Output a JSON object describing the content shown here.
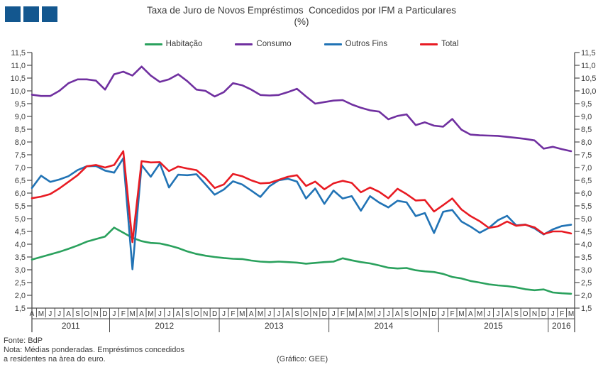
{
  "header": {
    "title": "Taxa de Juro de Novos Empréstimos  Concedidos por IFM a Particulares",
    "subtitle": "(%)"
  },
  "footer": {
    "source": "Fonte: BdP",
    "note_line1": "Nota: Médias ponderadas. Empréstimos concedidos",
    "note_line2": "a residentes na àrea do euro.",
    "credit": "(Gráfico: GEE)"
  },
  "chart_data": {
    "type": "line",
    "title": "Taxa de Juro de Novos Empréstimos Concedidos por IFM a Particulares (%)",
    "ylim": [
      1.5,
      11.5
    ],
    "ytick_step": 0.5,
    "ytick_labels": [
      "11,5",
      "11,0",
      "10,5",
      "10,0",
      "9,5",
      "9,0",
      "8,5",
      "8,0",
      "7,5",
      "7,0",
      "6,5",
      "6,0",
      "5,5",
      "5,0",
      "4,5",
      "4,0",
      "3,5",
      "3,0",
      "2,5",
      "2,0",
      "1,5"
    ],
    "grid": false,
    "legend_position": "top",
    "x_months": [
      "A",
      "M",
      "J",
      "J",
      "A",
      "S",
      "O",
      "N",
      "D",
      "J",
      "F",
      "M",
      "A",
      "M",
      "J",
      "J",
      "A",
      "S",
      "O",
      "N",
      "D",
      "J",
      "F",
      "M",
      "A",
      "M",
      "J",
      "J",
      "A",
      "S",
      "O",
      "N",
      "D",
      "J",
      "F",
      "M",
      "A",
      "M",
      "J",
      "J",
      "A",
      "S",
      "O",
      "N",
      "D",
      "J",
      "F",
      "M",
      "A",
      "M",
      "J",
      "J",
      "A",
      "S",
      "O",
      "N",
      "D",
      "J",
      "F",
      "M"
    ],
    "year_groups": [
      {
        "label": "2011",
        "start": 0,
        "count": 9
      },
      {
        "label": "2012",
        "start": 9,
        "count": 12
      },
      {
        "label": "2013",
        "start": 21,
        "count": 12
      },
      {
        "label": "2014",
        "start": 33,
        "count": 12
      },
      {
        "label": "2015",
        "start": 45,
        "count": 12
      },
      {
        "label": "2016",
        "start": 57,
        "count": 3
      }
    ],
    "series": [
      {
        "name": "Habitação",
        "color": "#2aa15d",
        "values": [
          3.4,
          3.5,
          3.6,
          3.7,
          3.82,
          3.95,
          4.1,
          4.2,
          4.3,
          4.65,
          4.45,
          4.25,
          4.12,
          4.05,
          4.03,
          3.95,
          3.85,
          3.72,
          3.62,
          3.55,
          3.5,
          3.46,
          3.43,
          3.42,
          3.36,
          3.32,
          3.3,
          3.32,
          3.3,
          3.28,
          3.24,
          3.27,
          3.3,
          3.32,
          3.45,
          3.37,
          3.3,
          3.25,
          3.17,
          3.08,
          3.05,
          3.07,
          2.98,
          2.94,
          2.91,
          2.84,
          2.72,
          2.66,
          2.56,
          2.5,
          2.43,
          2.39,
          2.36,
          2.31,
          2.24,
          2.2,
          2.23,
          2.11,
          2.08,
          2.06
        ]
      },
      {
        "name": "Consumo",
        "color": "#7030a0",
        "values": [
          9.85,
          9.8,
          9.8,
          10.0,
          10.3,
          10.45,
          10.45,
          10.4,
          10.05,
          10.65,
          10.75,
          10.6,
          10.95,
          10.6,
          10.35,
          10.45,
          10.65,
          10.38,
          10.05,
          10.0,
          9.78,
          9.95,
          10.3,
          10.22,
          10.05,
          9.84,
          9.82,
          9.84,
          9.95,
          10.08,
          9.78,
          9.5,
          9.56,
          9.62,
          9.64,
          9.47,
          9.34,
          9.24,
          9.19,
          8.89,
          9.02,
          9.08,
          8.66,
          8.77,
          8.64,
          8.6,
          8.9,
          8.48,
          8.29,
          8.26,
          8.25,
          8.24,
          8.2,
          8.16,
          8.12,
          8.06,
          7.74,
          7.81,
          7.72,
          7.64
        ]
      },
      {
        "name": "Outros Fins",
        "color": "#2173b5",
        "values": [
          6.2,
          6.68,
          6.44,
          6.53,
          6.66,
          6.9,
          7.05,
          7.06,
          6.88,
          6.8,
          7.36,
          3.02,
          7.1,
          6.64,
          7.16,
          6.22,
          6.72,
          6.7,
          6.74,
          6.34,
          5.94,
          6.14,
          6.46,
          6.34,
          6.1,
          5.85,
          6.27,
          6.5,
          6.56,
          6.45,
          5.79,
          6.18,
          5.58,
          6.1,
          5.79,
          5.88,
          5.31,
          5.88,
          5.63,
          5.44,
          5.7,
          5.64,
          5.1,
          5.22,
          4.44,
          5.27,
          5.34,
          4.89,
          4.69,
          4.45,
          4.64,
          4.94,
          5.11,
          4.74,
          4.77,
          4.62,
          4.38,
          4.58,
          4.71,
          4.76
        ]
      },
      {
        "name": "Total",
        "color": "#e81b23",
        "values": [
          5.8,
          5.86,
          5.96,
          6.18,
          6.44,
          6.7,
          7.05,
          7.1,
          7.0,
          7.1,
          7.64,
          4.08,
          7.25,
          7.2,
          7.21,
          6.86,
          7.04,
          6.96,
          6.9,
          6.6,
          6.2,
          6.34,
          6.75,
          6.66,
          6.5,
          6.38,
          6.4,
          6.52,
          6.64,
          6.7,
          6.28,
          6.45,
          6.15,
          6.38,
          6.48,
          6.4,
          6.03,
          6.22,
          6.05,
          5.8,
          6.17,
          5.96,
          5.71,
          5.73,
          5.28,
          5.53,
          5.79,
          5.36,
          5.1,
          4.9,
          4.64,
          4.7,
          4.89,
          4.72,
          4.76,
          4.66,
          4.4,
          4.5,
          4.5,
          4.42
        ]
      }
    ]
  },
  "logo": {
    "color": "#13578f"
  }
}
